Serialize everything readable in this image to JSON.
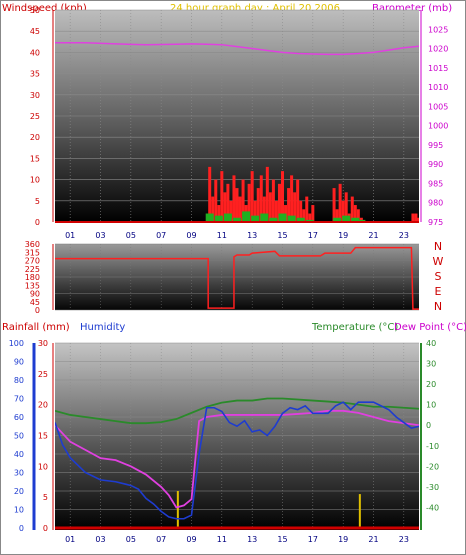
{
  "header": {
    "left_title": "Windspeed (kph)",
    "center_title": "24 hour graph day : April 20 2006",
    "right_title": "Barometer (mb)"
  },
  "colors": {
    "windspeed": "#ff0000",
    "gust_fill": "#ff2020",
    "avg_fill": "#20b020",
    "barometer": "#e040e0",
    "direction": "#ff2020",
    "humidity": "#1e3cd0",
    "temperature": "#2a8a2a",
    "dewpoint": "#e040e0",
    "rainfall": "#e01010",
    "rain_rate": "#e0c000",
    "left_axis_blue": "#1e3cd0"
  },
  "chart_data": [
    {
      "type": "line",
      "id": "wind-baro",
      "ylabel_left": "Windspeed (kph)",
      "ylabel_right": "Barometer (mb)",
      "title": "24 hour graph day : April 20 2006",
      "ylim_left": [
        0,
        50
      ],
      "yticks_left": [
        0,
        5,
        10,
        15,
        20,
        25,
        30,
        35,
        40,
        45,
        50
      ],
      "ylim_right": [
        975,
        1030
      ],
      "yticks_right": [
        975,
        980,
        985,
        990,
        995,
        1000,
        1005,
        1010,
        1015,
        1020,
        1025
      ],
      "xlim": [
        0,
        24
      ],
      "xticks": [
        "01",
        "03",
        "05",
        "07",
        "09",
        "11",
        "13",
        "15",
        "17",
        "19",
        "21",
        "23"
      ],
      "xtick_values": [
        1,
        3,
        5,
        7,
        9,
        11,
        13,
        15,
        17,
        19,
        21,
        23
      ],
      "barometer": {
        "x": [
          0,
          2,
          4,
          6,
          8,
          9,
          10,
          11,
          12,
          13,
          14,
          15,
          16,
          17,
          18,
          19,
          20,
          21,
          22,
          23,
          24
        ],
        "y": [
          1021.5,
          1021.5,
          1021.2,
          1021,
          1021.1,
          1021.2,
          1021.1,
          1021,
          1020.5,
          1020,
          1019.5,
          1019,
          1018.7,
          1018.6,
          1018.5,
          1018.5,
          1018.7,
          1019,
          1019.6,
          1020.2,
          1020.6
        ]
      },
      "wind_gust": {
        "x": [
          10.2,
          10.4,
          10.6,
          10.8,
          11,
          11.2,
          11.4,
          11.6,
          11.8,
          12,
          12.2,
          12.4,
          12.6,
          12.8,
          13,
          13.2,
          13.4,
          13.6,
          13.8,
          14,
          14.2,
          14.4,
          14.6,
          14.8,
          15,
          15.2,
          15.4,
          15.6,
          15.8,
          16,
          16.2,
          16.4,
          16.6,
          16.8,
          17,
          18.4,
          18.6,
          18.8,
          19,
          19.2,
          19.4,
          19.6,
          19.8,
          20,
          20.2,
          23.6,
          23.8,
          24
        ],
        "y": [
          13,
          6,
          10,
          4,
          12,
          7,
          9,
          5,
          11,
          8,
          6,
          10,
          4,
          9,
          12,
          5,
          8,
          11,
          6,
          13,
          7,
          10,
          5,
          9,
          12,
          4,
          8,
          11,
          7,
          10,
          5,
          3,
          6,
          2,
          4,
          8,
          3,
          9,
          5,
          7,
          2,
          6,
          4,
          3,
          1,
          2,
          2,
          1
        ]
      },
      "wind_avg": {
        "x": [
          10.2,
          10.8,
          11.4,
          12,
          12.6,
          13.2,
          13.8,
          14.4,
          15,
          15.6,
          16.2,
          16.8,
          18.6,
          19.2,
          19.8,
          20.2
        ],
        "y": [
          2,
          1.5,
          2,
          1,
          2.5,
          1.5,
          2,
          1,
          2,
          1.5,
          1,
          0.5,
          1,
          1.5,
          1,
          0.5
        ]
      }
    },
    {
      "type": "line",
      "id": "wind-direction",
      "ylim": [
        0,
        360
      ],
      "yticks": [
        0,
        45,
        90,
        135,
        180,
        225,
        270,
        315,
        360
      ],
      "compass_labels": [
        "N",
        "W",
        "S",
        "E",
        "N"
      ],
      "x": [
        0,
        10.1,
        10.1,
        10.5,
        11.8,
        11.8,
        12,
        12.8,
        13,
        14.5,
        14.8,
        17.5,
        17.8,
        19.5,
        19.8,
        23.5,
        23.6,
        24
      ],
      "y": [
        280,
        280,
        10,
        10,
        10,
        290,
        300,
        300,
        310,
        320,
        295,
        295,
        310,
        310,
        340,
        340,
        5,
        5
      ]
    },
    {
      "type": "line",
      "id": "temp-hum-rain",
      "ylabel_left_1": "Rainfall (mm)",
      "ylabel_left_2": "Humidity",
      "ylabel_right_1": "Temperature (°C)",
      "ylabel_right_2": "Dew Point (°C)",
      "ylim_humidity": [
        0,
        100
      ],
      "yticks_humidity": [
        0,
        10,
        20,
        30,
        40,
        50,
        60,
        70,
        80,
        90,
        100
      ],
      "ylim_rain": [
        0,
        30
      ],
      "yticks_rain": [
        0,
        5,
        10,
        15,
        20,
        25,
        30
      ],
      "ylim_temp": [
        -50,
        40
      ],
      "yticks_temp": [
        -40,
        -30,
        -20,
        -10,
        0,
        10,
        20,
        30,
        40
      ],
      "xlim": [
        0,
        24
      ],
      "xticks": [
        "01",
        "03",
        "05",
        "07",
        "09",
        "11",
        "13",
        "15",
        "17",
        "19",
        "21",
        "23"
      ],
      "xtick_values": [
        1,
        3,
        5,
        7,
        9,
        11,
        13,
        15,
        17,
        19,
        21,
        23
      ],
      "temperature": {
        "x": [
          0,
          1,
          2,
          3,
          4,
          5,
          6,
          7,
          8,
          9,
          10,
          11,
          12,
          13,
          14,
          15,
          16,
          17,
          18,
          19,
          20,
          21,
          22,
          23,
          24
        ],
        "y": [
          7,
          5,
          4,
          3,
          2,
          1,
          1,
          1.5,
          3,
          6,
          9,
          11,
          12,
          12,
          13,
          13,
          12.5,
          12,
          11.5,
          11,
          10,
          9,
          9,
          8.5,
          8
        ]
      },
      "dewpoint": {
        "x": [
          0,
          0.5,
          1,
          2,
          3,
          4,
          5,
          6,
          7,
          7.5,
          8,
          8.5,
          9,
          9.5,
          10,
          11,
          12,
          13,
          14,
          15,
          16,
          17,
          18,
          19,
          20,
          21,
          22,
          23,
          24
        ],
        "y": [
          0,
          -4,
          -8,
          -12,
          -16,
          -17,
          -20,
          -24,
          -30,
          -34,
          -40,
          -39,
          -36,
          2,
          4,
          5,
          5,
          5,
          5,
          5,
          5.5,
          6,
          7,
          7,
          6,
          4,
          2,
          1,
          0
        ]
      },
      "humidity": {
        "x": [
          0,
          0.5,
          1,
          2,
          3,
          4,
          5,
          5.5,
          6,
          6.5,
          7,
          7.5,
          8,
          8.5,
          9,
          9.5,
          10,
          10.5,
          11,
          11.5,
          12,
          12.5,
          13,
          13.5,
          14,
          14.5,
          15,
          15.5,
          16,
          16.5,
          17,
          17.5,
          18,
          18.5,
          19,
          19.5,
          20,
          20.5,
          21,
          21.5,
          22,
          22.5,
          23,
          23.5,
          24
        ],
        "y": [
          57,
          45,
          38,
          30,
          26,
          25,
          23,
          21,
          16,
          13,
          9,
          6,
          5,
          5,
          7,
          40,
          65,
          65,
          63,
          57,
          55,
          58,
          52,
          53,
          50,
          55,
          62,
          65,
          64,
          66,
          62,
          62,
          62,
          66,
          68,
          64,
          68,
          68,
          68,
          66,
          64,
          60,
          57,
          54,
          55
        ]
      },
      "rainfall": {
        "x": [
          0,
          24
        ],
        "y": [
          0,
          0
        ]
      },
      "rain_rate": {
        "x": [
          8.1,
          20.1
        ],
        "y": [
          12,
          11
        ]
      }
    }
  ]
}
